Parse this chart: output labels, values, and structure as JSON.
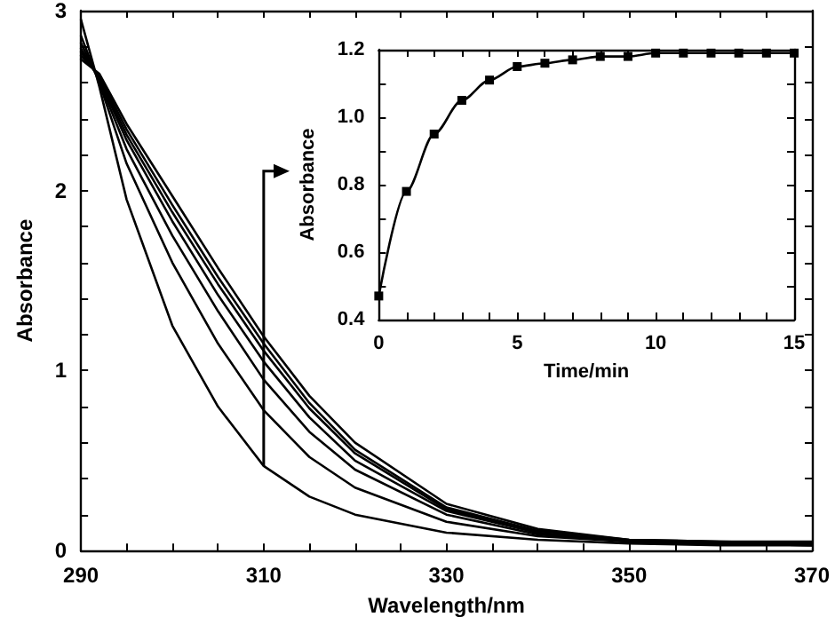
{
  "chart_data": [
    {
      "type": "line",
      "xlabel": "Wavelength/nm",
      "ylabel": "Absorbance",
      "marker": "none",
      "line_style": "solid",
      "grid": false,
      "x": [
        290,
        292,
        295,
        300,
        305,
        310,
        315,
        320,
        330,
        340,
        350,
        360,
        370
      ],
      "xlim": [
        290,
        370
      ],
      "ylim": [
        0,
        3
      ],
      "xticks": [
        290,
        {
          "value": 295,
          "label": null
        },
        {
          "value": 300,
          "label": null
        },
        {
          "value": 305,
          "label": null
        },
        310,
        {
          "value": 315,
          "label": null
        },
        {
          "value": 320,
          "label": null
        },
        {
          "value": 325,
          "label": null
        },
        330,
        {
          "value": 335,
          "label": null
        },
        {
          "value": 340,
          "label": null
        },
        {
          "value": 345,
          "label": null
        },
        350,
        {
          "value": 355,
          "label": null
        },
        {
          "value": 360,
          "label": null
        },
        {
          "value": 365,
          "label": null
        },
        370
      ],
      "yticks": [
        0,
        {
          "value": 0.2,
          "label": null
        },
        {
          "value": 0.4,
          "label": null
        },
        {
          "value": 0.6,
          "label": null
        },
        {
          "value": 0.8,
          "label": null
        },
        1,
        {
          "value": 1.2,
          "label": null
        },
        {
          "value": 1.4,
          "label": null
        },
        {
          "value": 1.6,
          "label": null
        },
        {
          "value": 1.8,
          "label": null
        },
        2,
        {
          "value": 2.2,
          "label": null
        },
        {
          "value": 2.4,
          "label": null
        },
        {
          "value": 2.6,
          "label": null
        },
        {
          "value": 2.8,
          "label": null
        },
        3
      ],
      "series": [
        {
          "color": "#000000",
          "values": [
            2.95,
            2.58,
            1.95,
            1.25,
            0.8,
            0.47,
            0.3,
            0.2,
            0.1,
            0.06,
            0.04,
            0.03,
            0.03
          ]
        },
        {
          "color": "#000000",
          "values": [
            2.86,
            2.6,
            2.15,
            1.6,
            1.15,
            0.78,
            0.52,
            0.35,
            0.16,
            0.08,
            0.05,
            0.04,
            0.03
          ]
        },
        {
          "color": "#000000",
          "values": [
            2.82,
            2.61,
            2.23,
            1.75,
            1.33,
            0.95,
            0.66,
            0.45,
            0.2,
            0.09,
            0.05,
            0.04,
            0.03
          ]
        },
        {
          "color": "#000000",
          "values": [
            2.79,
            2.62,
            2.28,
            1.83,
            1.42,
            1.05,
            0.74,
            0.5,
            0.22,
            0.1,
            0.05,
            0.04,
            0.04
          ]
        },
        {
          "color": "#000000",
          "values": [
            2.77,
            2.63,
            2.31,
            1.88,
            1.48,
            1.11,
            0.79,
            0.54,
            0.23,
            0.1,
            0.05,
            0.04,
            0.04
          ]
        },
        {
          "color": "#000000",
          "values": [
            2.75,
            2.64,
            2.34,
            1.92,
            1.52,
            1.15,
            0.82,
            0.56,
            0.24,
            0.11,
            0.06,
            0.05,
            0.04
          ]
        },
        {
          "color": "#000000",
          "values": [
            2.73,
            2.65,
            2.37,
            1.97,
            1.57,
            1.19,
            0.86,
            0.6,
            0.26,
            0.12,
            0.06,
            0.05,
            0.05
          ]
        }
      ]
    },
    {
      "type": "line",
      "xlabel": "Time/min",
      "ylabel": "Absorbance",
      "marker": "square",
      "line_style": "solid",
      "grid": false,
      "x": [
        0,
        1,
        2,
        3,
        4,
        5,
        6,
        7,
        8,
        9,
        10,
        11,
        12,
        13,
        14,
        15
      ],
      "xlim": [
        0,
        15
      ],
      "ylim": [
        0.4,
        1.2
      ],
      "xticks": [
        0,
        {
          "value": 1,
          "label": null
        },
        {
          "value": 2,
          "label": null
        },
        {
          "value": 3,
          "label": null
        },
        {
          "value": 4,
          "label": null
        },
        5,
        {
          "value": 6,
          "label": null
        },
        {
          "value": 7,
          "label": null
        },
        {
          "value": 8,
          "label": null
        },
        {
          "value": 9,
          "label": null
        },
        10,
        {
          "value": 11,
          "label": null
        },
        {
          "value": 12,
          "label": null
        },
        {
          "value": 13,
          "label": null
        },
        {
          "value": 14,
          "label": null
        },
        15
      ],
      "yticks": [
        0.4,
        {
          "value": 0.5,
          "label": null
        },
        0.6,
        {
          "value": 0.7,
          "label": null
        },
        0.8,
        {
          "value": 0.9,
          "label": null
        },
        {
          "value": 1,
          "label": "1.0"
        },
        {
          "value": 1.1,
          "label": null
        },
        1.2
      ],
      "series": [
        {
          "color": "#000000",
          "values": [
            0.47,
            0.78,
            0.95,
            1.05,
            1.11,
            1.15,
            1.16,
            1.17,
            1.18,
            1.18,
            1.19,
            1.19,
            1.19,
            1.19,
            1.19,
            1.19
          ]
        }
      ]
    }
  ]
}
